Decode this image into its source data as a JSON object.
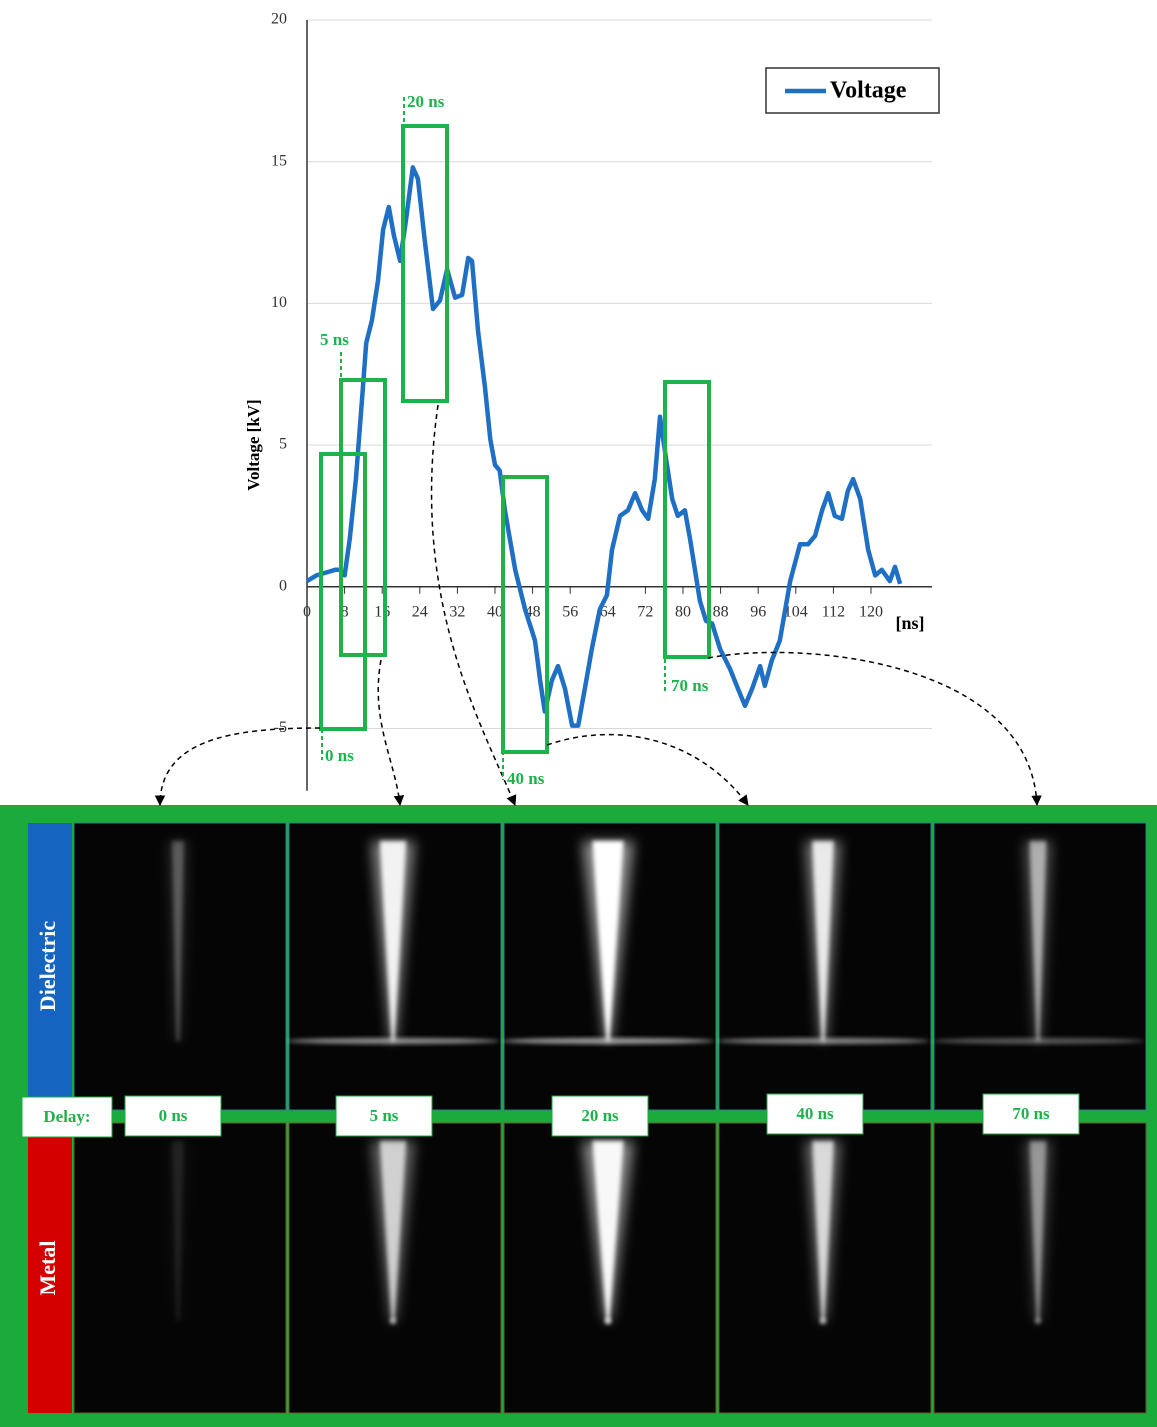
{
  "chart_data": {
    "type": "line",
    "y_label": "Voltage [kV]",
    "x_label": "[ns]",
    "x": [
      0,
      2,
      4,
      6,
      7,
      8,
      9.1,
      10.4,
      11.7,
      12.6,
      13.8,
      15.1,
      16.2,
      17.4,
      18.5,
      19.8,
      21.1,
      22.5,
      23.6,
      25,
      26.8,
      28.3,
      29.8,
      31.5,
      33,
      34.3,
      35.1,
      36.4,
      37.9,
      39,
      40,
      41,
      42.1,
      44.3,
      46.4,
      48.5,
      49.6,
      50.6,
      52.1,
      53.4,
      54.9,
      56.4,
      57.7,
      59.1,
      60.6,
      62.3,
      63.8,
      64.9,
      66.6,
      68.3,
      69.8,
      71.3,
      72.6,
      74,
      75.1,
      76.4,
      77.7,
      78.9,
      80.4,
      81.5,
      83.6,
      84.9,
      86.2,
      87.9,
      90,
      91.7,
      93.2,
      94.7,
      96.4,
      97.4,
      98.9,
      100.6,
      102.8,
      104.9,
      106.6,
      108.1,
      109.6,
      110.9,
      112.3,
      113.8,
      115.1,
      116.2,
      117.7,
      119.4,
      120.9,
      122.3,
      124,
      125.1,
      126.2
    ],
    "series": [
      {
        "name": "Voltage",
        "color": "#1f6fc5",
        "values": [
          0.2,
          0.4,
          0.5,
          0.6,
          0.6,
          0.4,
          1.7,
          3.8,
          6.6,
          8.6,
          9.4,
          10.8,
          12.6,
          13.4,
          12.4,
          11.5,
          13,
          14.8,
          14.4,
          12.3,
          9.8,
          10.1,
          11.2,
          10.2,
          10.3,
          11.6,
          11.5,
          9,
          7,
          5.2,
          4.3,
          4.1,
          2.7,
          0.6,
          -0.8,
          -1.9,
          -3.3,
          -4.4,
          -3.3,
          -2.8,
          -3.6,
          -4.9,
          -4.9,
          -3.6,
          -2.2,
          -0.8,
          -0.3,
          1.3,
          2.5,
          2.7,
          3.3,
          2.7,
          2.4,
          3.8,
          6,
          4.5,
          3.1,
          2.5,
          2.7,
          1.7,
          -0.5,
          -1.2,
          -1.3,
          -2.2,
          -2.9,
          -3.6,
          -4.2,
          -3.6,
          -2.8,
          -3.5,
          -2.6,
          -1.9,
          0.2,
          1.5,
          1.5,
          1.8,
          2.7,
          3.3,
          2.5,
          2.4,
          3.4,
          3.8,
          3.1,
          1.3,
          0.4,
          0.6,
          0.2,
          0.7,
          0.1
        ]
      }
    ],
    "xlim": [
      0,
      132
    ],
    "ylim": [
      -7.2,
      20
    ],
    "xticks": [
      0,
      8,
      16,
      24,
      32,
      40,
      48,
      56,
      64,
      72,
      80,
      88,
      96,
      104,
      112,
      120
    ],
    "yticks": [
      -5,
      0,
      5,
      10,
      15,
      20
    ],
    "grid": true,
    "legend": "upper right",
    "highlights": [
      "0 ns",
      "5 ns",
      "20 ns",
      "40 ns",
      "70 ns"
    ]
  },
  "panel": {
    "rows": [
      "Dielectric",
      "Metal"
    ],
    "delay_label": "Delay:"
  }
}
